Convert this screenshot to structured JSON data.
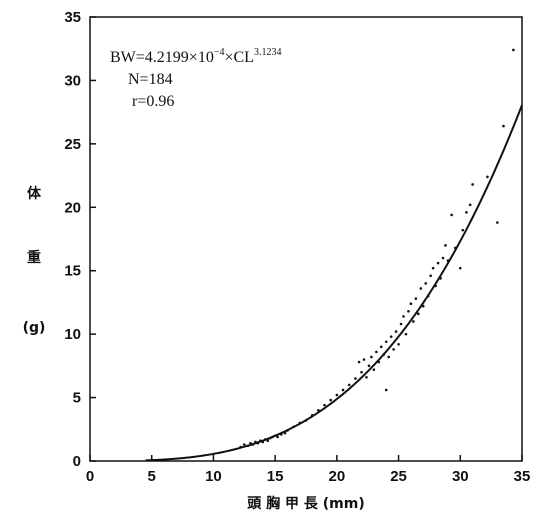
{
  "chart_data": {
    "type": "scatter",
    "title": "",
    "xlabel": "頭 胸 甲 長 (mm)",
    "ylabel": [
      "体",
      "重",
      "(g)"
    ],
    "xlim": [
      0,
      35
    ],
    "ylim": [
      0,
      35
    ],
    "xticks": [
      0,
      5,
      10,
      15,
      20,
      25,
      30,
      35
    ],
    "yticks": [
      0,
      5,
      10,
      15,
      20,
      25,
      30,
      35
    ],
    "grid": false,
    "legend": "none",
    "annotation": {
      "equation_base": "BW=4.2199×10",
      "equation_exp1": "−4",
      "equation_mid": "×CL",
      "equation_exp2": "3.1234",
      "n_text": "N=184",
      "r_text": "r=0.96"
    },
    "fit": {
      "name": "",
      "a": 0.00042199,
      "b": 3.1234
    },
    "series": [
      {
        "name": "",
        "points": [
          [
            12.2,
            1.1
          ],
          [
            12.5,
            1.3
          ],
          [
            12.8,
            1.2
          ],
          [
            13.0,
            1.4
          ],
          [
            13.2,
            1.3
          ],
          [
            13.4,
            1.5
          ],
          [
            13.6,
            1.4
          ],
          [
            13.8,
            1.6
          ],
          [
            14.0,
            1.5
          ],
          [
            14.2,
            1.7
          ],
          [
            14.4,
            1.6
          ],
          [
            14.6,
            1.8
          ],
          [
            14.8,
            1.9
          ],
          [
            15.0,
            2.0
          ],
          [
            15.2,
            1.9
          ],
          [
            15.5,
            2.1
          ],
          [
            15.8,
            2.2
          ],
          [
            16.0,
            2.4
          ],
          [
            16.5,
            2.7
          ],
          [
            17.0,
            3.0
          ],
          [
            17.5,
            3.2
          ],
          [
            18.0,
            3.6
          ],
          [
            18.5,
            4.0
          ],
          [
            19.0,
            4.4
          ],
          [
            19.5,
            4.8
          ],
          [
            20.0,
            5.2
          ],
          [
            20.5,
            5.6
          ],
          [
            21.0,
            6.0
          ],
          [
            21.5,
            6.5
          ],
          [
            21.8,
            7.8
          ],
          [
            22.0,
            7.0
          ],
          [
            22.2,
            8.0
          ],
          [
            22.4,
            6.6
          ],
          [
            22.6,
            7.5
          ],
          [
            22.8,
            8.2
          ],
          [
            23.0,
            7.2
          ],
          [
            23.2,
            8.6
          ],
          [
            23.4,
            7.8
          ],
          [
            23.6,
            9.0
          ],
          [
            23.8,
            8.4
          ],
          [
            24.0,
            5.6
          ],
          [
            24.0,
            9.4
          ],
          [
            24.2,
            8.2
          ],
          [
            24.4,
            9.8
          ],
          [
            24.6,
            8.8
          ],
          [
            24.8,
            10.2
          ],
          [
            25.0,
            9.2
          ],
          [
            25.2,
            10.8
          ],
          [
            25.4,
            11.4
          ],
          [
            25.6,
            10.0
          ],
          [
            25.8,
            11.8
          ],
          [
            26.0,
            12.4
          ],
          [
            26.2,
            11.0
          ],
          [
            26.4,
            12.8
          ],
          [
            26.6,
            11.6
          ],
          [
            26.8,
            13.6
          ],
          [
            27.0,
            12.2
          ],
          [
            27.2,
            14.0
          ],
          [
            27.4,
            13.0
          ],
          [
            27.6,
            14.6
          ],
          [
            27.8,
            15.2
          ],
          [
            28.0,
            13.8
          ],
          [
            28.2,
            15.6
          ],
          [
            28.4,
            14.4
          ],
          [
            28.6,
            16.0
          ],
          [
            28.8,
            17.0
          ],
          [
            29.0,
            15.8
          ],
          [
            29.3,
            19.4
          ],
          [
            29.6,
            16.8
          ],
          [
            30.0,
            15.2
          ],
          [
            30.2,
            18.2
          ],
          [
            30.5,
            19.6
          ],
          [
            30.8,
            20.2
          ],
          [
            31.0,
            21.8
          ],
          [
            32.2,
            22.4
          ],
          [
            33.0,
            18.8
          ],
          [
            33.5,
            26.4
          ],
          [
            34.3,
            32.4
          ]
        ]
      }
    ]
  }
}
